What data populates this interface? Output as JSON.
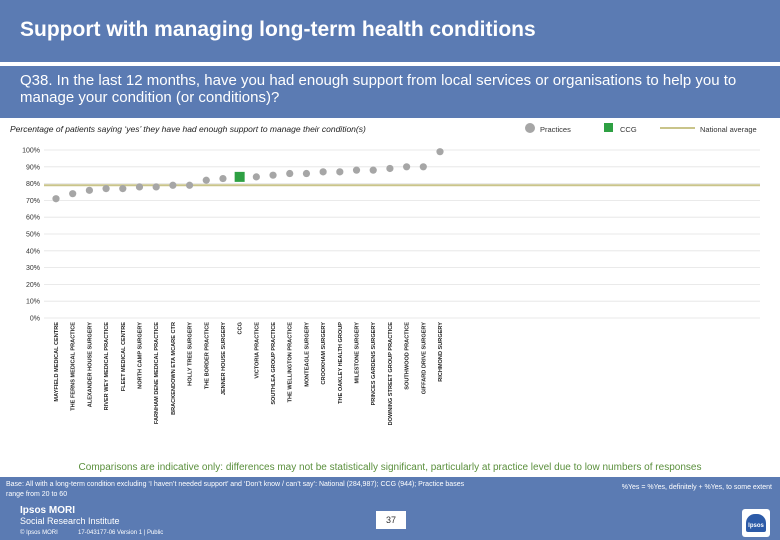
{
  "header": {
    "title": "Support with managing long-term health conditions",
    "question": "Q38. In the last 12 months, have you had enough support from local services or organisations to help you to manage your condition (or conditions)?"
  },
  "chart_data": {
    "type": "scatter",
    "subtitle": "Percentage of patients saying ‘yes’ they have had enough support to manage their condition(s)",
    "legend": {
      "practices": "Practices",
      "ccg": "CCG",
      "national": "National average",
      "placement": "top-right"
    },
    "yticks": [
      "0%",
      "10%",
      "20%",
      "30%",
      "40%",
      "50%",
      "60%",
      "70%",
      "80%",
      "90%",
      "100%"
    ],
    "ylim": [
      0,
      100
    ],
    "national_average": 79,
    "categories": [
      "MAYFIELD MEDICAL CENTRE",
      "THE FERNS MEDICAL PRACTICE",
      "ALEXANDER HOUSE SURGERY",
      "RIVER WEY MEDICAL PRACTICE",
      "FLEET MEDICAL CENTRE",
      "NORTH CAMP SURGERY",
      "FARNHAM DENE MEDICAL PRACTICE",
      "BRACKENDOWN ETA MCARE CTR",
      "HOLLY TREE SURGERY",
      "THE BORDER PRACTICE",
      "JENNER HOUSE SURGERY",
      "CCG",
      "VICTORIA PRACTICE",
      "SOUTHLEA GROUP PRACTICE",
      "THE WELLINGTON PRACTICE",
      "MONTEAGLE SURGERY",
      "CROOKHAM SURGERY",
      "THE OAKLEY HEALTH GROUP",
      "MILESTONE SURGERY",
      "PRINCES GARDENS SURGERY",
      "DOWNING STREET GROUP PRACTICE",
      "SOUTHWOOD PRACTICE",
      "GIFFARD DRIVE SURGERY",
      "RICHMOND SURGERY"
    ],
    "values": [
      71,
      74,
      76,
      77,
      77,
      78,
      78,
      79,
      79,
      82,
      83,
      84,
      84,
      85,
      86,
      86,
      87,
      87,
      88,
      88,
      89,
      90,
      90,
      99
    ],
    "ccg_index": 11
  },
  "footer": {
    "note": "Comparisons are indicative only: differences may not be statistically significant, particularly at practice level due to low numbers of responses",
    "base": "Base: All with a long-term condition excluding ‘I haven’t needed support’ and ‘Don’t know / can’t say’: National (284,987); CCG (944); Practice bases range from 20 to 60",
    "definition": "%Yes = %Yes, definitely + %Yes, to some extent",
    "logo_line1": "Ipsos MORI",
    "logo_line2": "Social Research Institute",
    "copyright": "© Ipsos MORI",
    "version": "17-043177-06 Version 1 | Public",
    "page": "37"
  },
  "colors": {
    "header_bg": "#5b7bb3",
    "practice_dot": "#a6a6a6",
    "ccg_square": "#2ea043",
    "national_line": "#c9c48a",
    "note_green": "#5a8f3c"
  }
}
